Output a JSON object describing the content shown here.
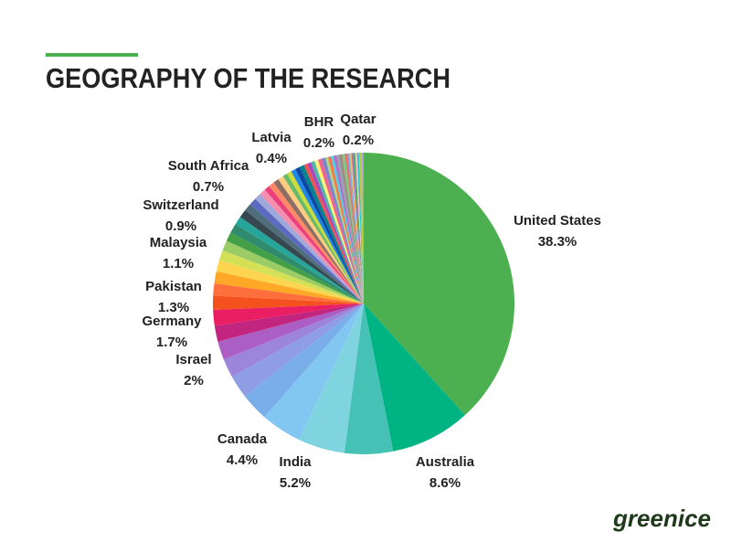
{
  "chart_data": {
    "type": "pie",
    "title": "GEOGRAPHY OF THE RESEARCH",
    "categories": [
      "United States",
      "Australia",
      "India",
      null,
      "Canada",
      null,
      null,
      "Israel",
      null,
      "Germany",
      null,
      null,
      "Pakistan",
      null,
      null,
      "Malaysia",
      null,
      null,
      null,
      "Switzerland",
      null,
      null,
      null,
      "South Africa",
      null,
      null,
      null,
      null,
      null,
      null,
      null,
      null,
      null,
      null,
      "Latvia",
      null,
      null,
      null,
      null,
      null,
      null,
      null,
      null,
      null,
      null,
      null,
      null,
      null,
      "BHR",
      null,
      null,
      null,
      null,
      null,
      null,
      "Qatar"
    ],
    "values": [
      38.3,
      8.6,
      5.2,
      5.0,
      4.4,
      3.0,
      2.5,
      2,
      2.0,
      1.7,
      1.7,
      1.5,
      1.3,
      1.3,
      1.2,
      1.1,
      1.1,
      1.0,
      1.0,
      0.9,
      0.9,
      0.8,
      0.8,
      0.7,
      0.7,
      0.6,
      0.6,
      0.6,
      0.6,
      0.5,
      0.5,
      0.5,
      0.5,
      0.5,
      0.4,
      0.4,
      0.4,
      0.4,
      0.4,
      0.4,
      0.3,
      0.3,
      0.3,
      0.3,
      0.3,
      0.3,
      0.3,
      0.3,
      0.2,
      0.2,
      0.2,
      0.2,
      0.2,
      0.2,
      0.3,
      0.2
    ],
    "value_labels": [
      "38.3%",
      "8.6%",
      "5.2%",
      null,
      "4.4%",
      null,
      null,
      "2%",
      null,
      "1.7%",
      null,
      null,
      "1.3%",
      null,
      null,
      "1.1%",
      null,
      null,
      null,
      "0.9%",
      null,
      null,
      null,
      "0.7%",
      null,
      null,
      null,
      null,
      null,
      null,
      null,
      null,
      null,
      null,
      "0.4%",
      null,
      null,
      null,
      null,
      null,
      null,
      null,
      null,
      null,
      null,
      null,
      null,
      null,
      "0.2%",
      null,
      null,
      null,
      null,
      null,
      null,
      "0.2%"
    ],
    "colors": [
      "#4caf50",
      "#00b383",
      "#45c1b5",
      "#80d4df",
      "#81c7f2",
      "#7aaee9",
      "#8e9de4",
      "#9c86d9",
      "#ab5fc4",
      "#c2257f",
      "#e91e63",
      "#f4511e",
      "#ff6f3c",
      "#ffa726",
      "#ffd54f",
      "#d4e157",
      "#9ccc65",
      "#43a047",
      "#2e8b6e",
      "#26a69a",
      "#37474f",
      "#4f6d7a",
      "#5c6bc0",
      "#9fa8da",
      "#f48fb1",
      "#ec407a",
      "#ff8a65",
      "#8d6e63",
      "#ffcc80",
      "#66bb6a",
      "#cddc39",
      "#1e88e5",
      "#0d47a1",
      "#00838f",
      "#ef5350",
      "#ab47bc",
      "#4db6ac",
      "#fff176",
      "#f06292",
      "#7986cb",
      "#aed581",
      "#ff7043",
      "#4dd0e1",
      "#ba68c8",
      "#90a4ae",
      "#a1887f",
      "#81c784",
      "#e57373",
      "#64b5f6",
      "#ffb74d",
      "#9575cd",
      "#4caf50",
      "#f8bbd0",
      "#26c6da",
      "#c0ca33",
      "#b39ddb"
    ]
  },
  "logo": "greenice"
}
